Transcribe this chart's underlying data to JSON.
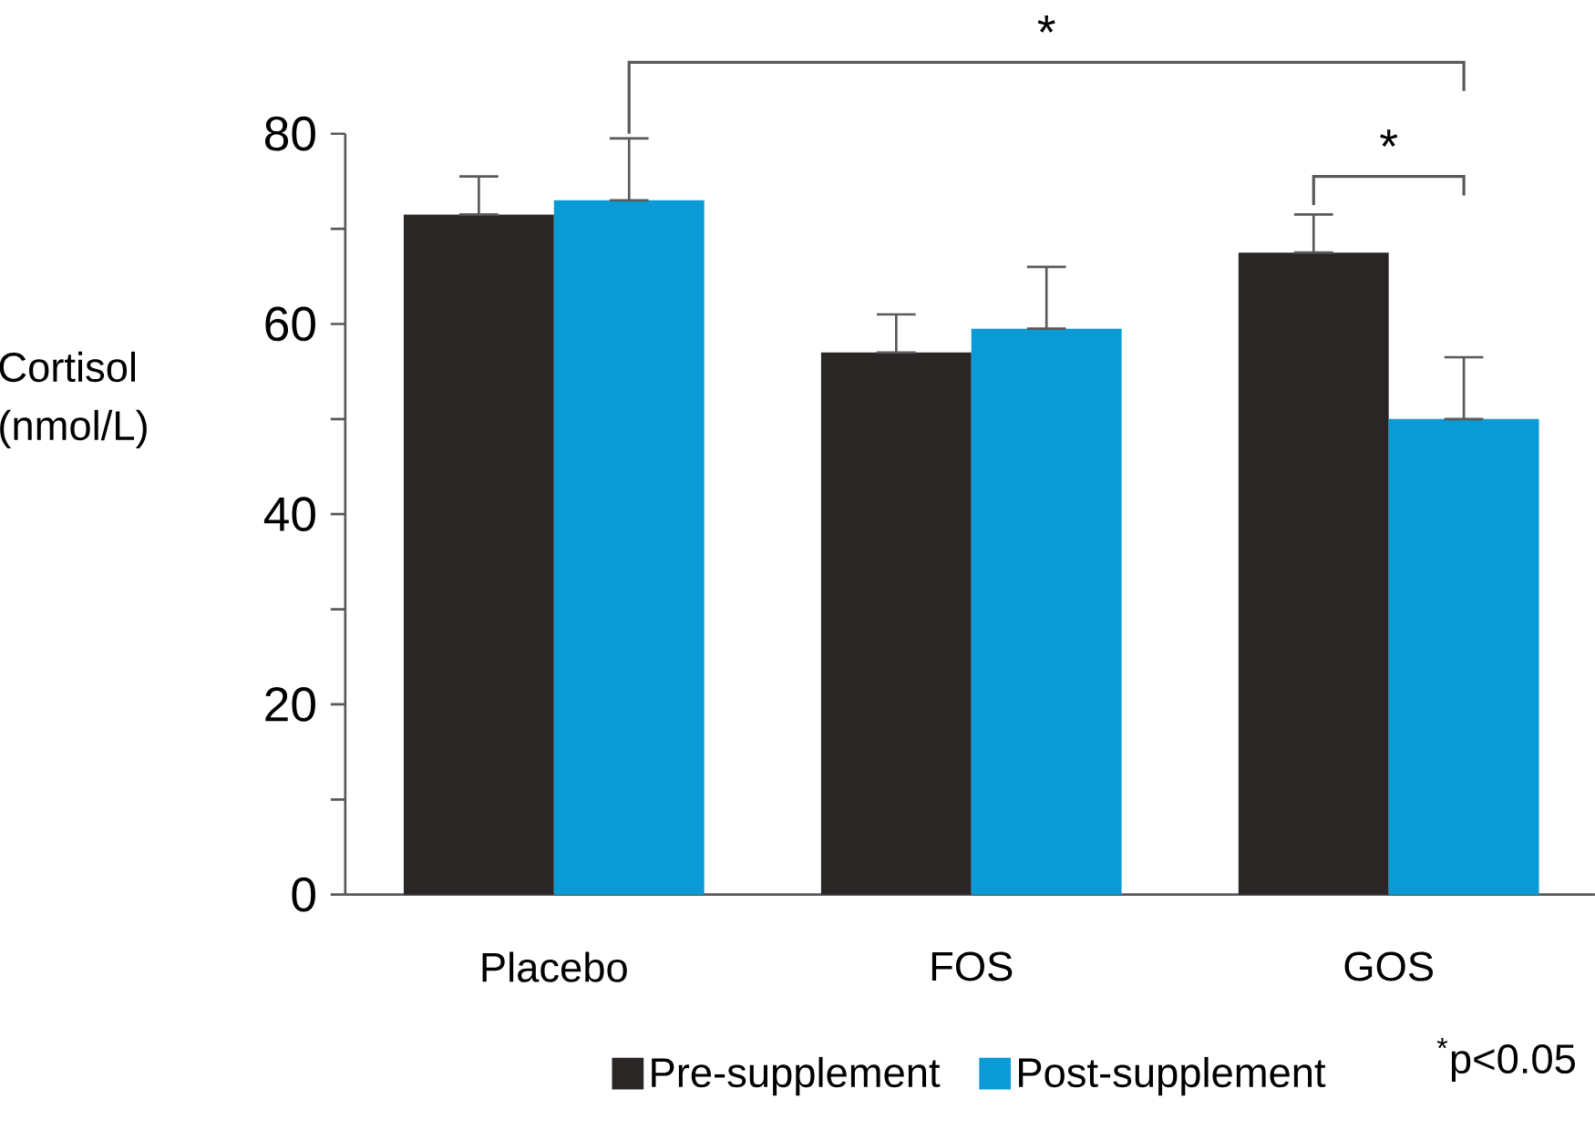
{
  "chart_data": {
    "type": "bar",
    "ylabel": "Cortisol (nmol/L)",
    "categories": [
      "Placebo",
      "FOS",
      "GOS"
    ],
    "series": [
      {
        "name": "Pre-supplement",
        "color": "#2b2626",
        "values": [
          71.5,
          57,
          67.5
        ],
        "errors": [
          [
            71.5,
            75.5
          ],
          [
            57,
            61
          ],
          [
            67.5,
            71.5
          ]
        ]
      },
      {
        "name": "Post-supplement",
        "color": "#0a9ad6",
        "values": [
          73,
          59.5,
          50
        ],
        "errors": [
          [
            73,
            79.5
          ],
          [
            59.5,
            66
          ],
          [
            50,
            56.5
          ]
        ]
      }
    ],
    "ylim": [
      0,
      80
    ],
    "yticks": [
      0,
      {
        "value": 10,
        "label": null
      },
      20,
      {
        "value": 30,
        "label": null
      },
      40,
      {
        "value": 50,
        "label": null
      },
      60,
      {
        "value": 70,
        "label": null
      },
      80
    ],
    "legend": "bottom",
    "grid": false,
    "annotations": [
      "*",
      "*",
      "$^{*}$p<0.05"
    ]
  }
}
